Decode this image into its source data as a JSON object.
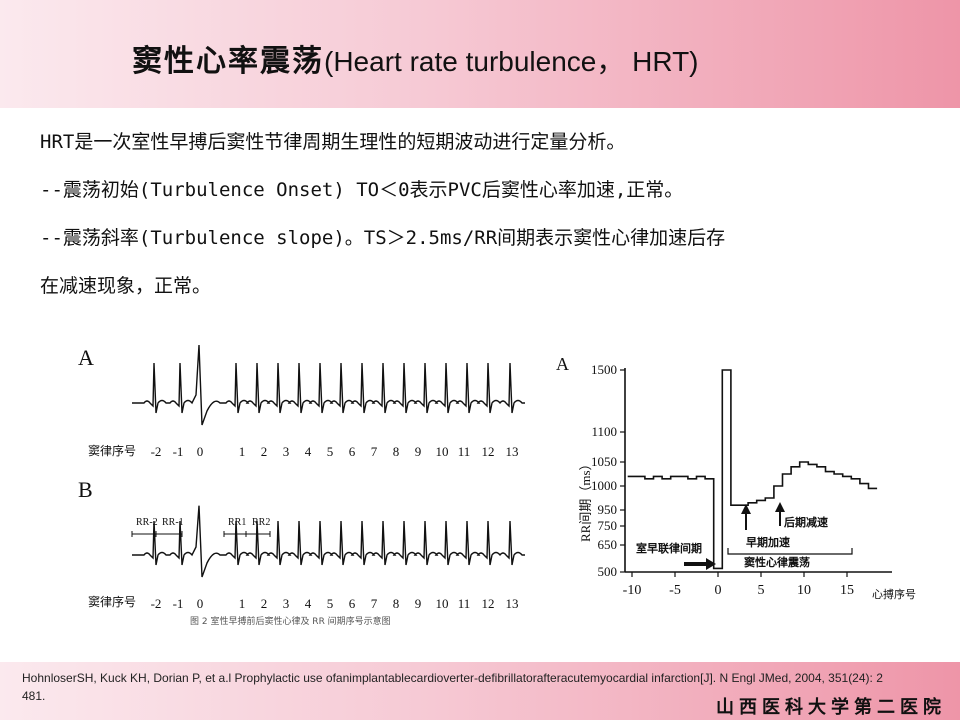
{
  "slide": {
    "title_cn": "窦性心率震荡",
    "title_en": "(Heart rate turbulence， HRT)",
    "lines": [
      "HRT是一次室性早搏后窦性节律周期生理性的短期波动进行定量分析。",
      "--震荡初始(Turbulence Onset) TO＜0表示PVC后窦性心率加速,正常。",
      "--震荡斜率(Turbulence slope)。TS＞2.5ms/RR间期表示窦性心律加速后存",
      "在减速现象，正常。"
    ],
    "reference": "HohnloserSH, Kuck KH, Dorian P, et a.l Prophylactic use ofanimplantablecardioverter-defibrillatorafteracutemyocardial infarction[J]. N Engl JMed, 2004, 351(24): 2 481.",
    "school": "山西医科大学第二医院"
  },
  "ecg_figure": {
    "panel_a_label": "A",
    "panel_b_label": "B",
    "axis_label": "窦律序号",
    "beat_numbers": [
      "-2",
      "-1",
      "0",
      "1",
      "2",
      "3",
      "4",
      "5",
      "6",
      "7",
      "8",
      "9",
      "10",
      "11",
      "12",
      "13"
    ],
    "rr_labels": [
      "RR-2",
      "RR-1",
      "RR1",
      "RR2"
    ],
    "caption": "图 2   室性早搏前后窦性心律及 RR 间期序号示意图"
  },
  "chart_data": {
    "type": "line",
    "panel_label": "A",
    "ylabel": "RR间期（ms）",
    "xlabel": "心搏序号",
    "y_ticks": [
      500,
      650,
      750,
      950,
      1000,
      1050,
      1100,
      1500
    ],
    "x_ticks": [
      -10,
      -5,
      0,
      5,
      10,
      15
    ],
    "x": [
      -10,
      -9,
      -8,
      -7,
      -6,
      -5,
      -4,
      -3,
      -2,
      -1,
      0,
      1,
      2,
      3,
      4,
      5,
      6,
      7,
      8,
      9,
      10,
      11,
      12,
      13,
      14,
      15,
      16,
      17,
      18
    ],
    "values": [
      1020,
      1020,
      1015,
      1020,
      1015,
      1020,
      1020,
      1015,
      1020,
      1015,
      520,
      1500,
      960,
      960,
      965,
      970,
      975,
      1000,
      1025,
      1040,
      1050,
      1045,
      1040,
      1030,
      1025,
      1020,
      1015,
      1005,
      995
    ],
    "annotations": {
      "coupling": "室早联律间期",
      "early_acceleration": "早期加速",
      "late_deceleration": "后期减速",
      "sinus_turbulence": "窦性心律震荡"
    }
  }
}
